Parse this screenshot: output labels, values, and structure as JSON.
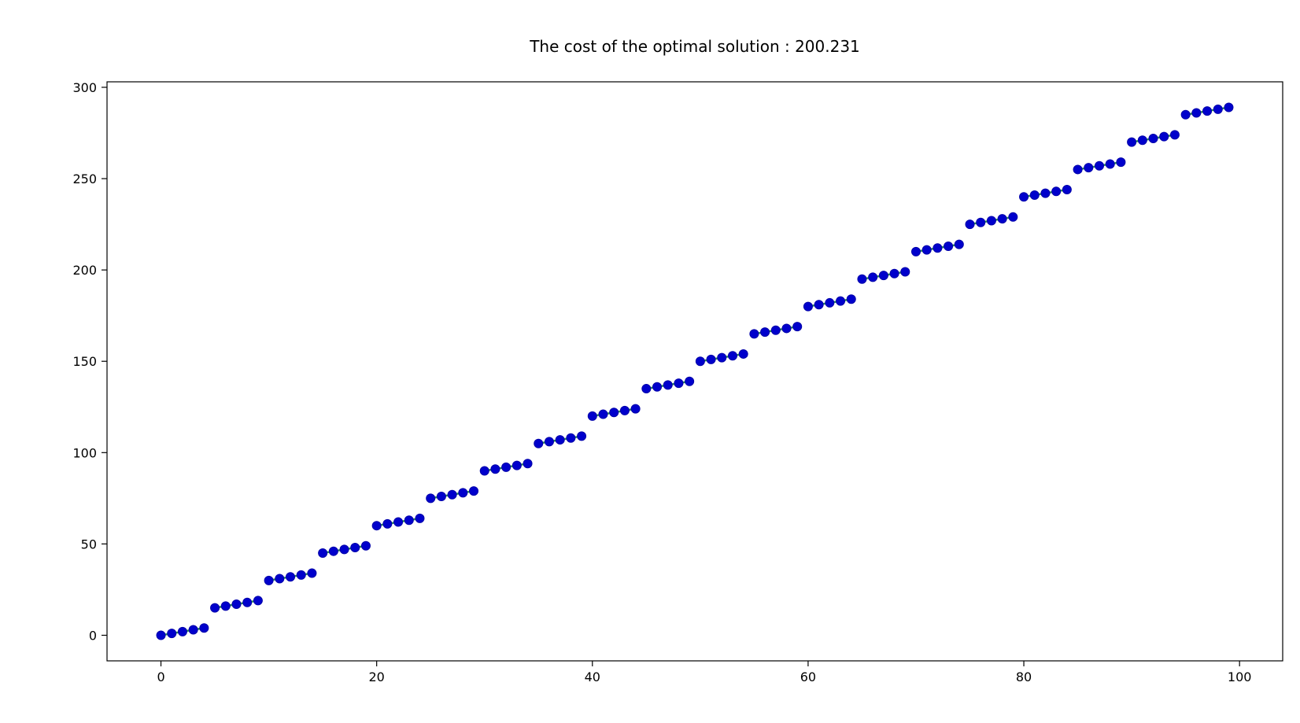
{
  "chart_data": {
    "type": "scatter",
    "title": "The cost of the optimal solution : 200.231",
    "xlabel": "",
    "ylabel": "",
    "xlim": [
      -5,
      104
    ],
    "ylim": [
      -14,
      303
    ],
    "x_ticks": [
      0,
      20,
      40,
      60,
      80,
      100
    ],
    "y_ticks": [
      0,
      50,
      100,
      150,
      200,
      250,
      300
    ],
    "grid": false,
    "legend": "none",
    "colors": {
      "marker": "#0000cc",
      "marker_edge": "#0000aa",
      "segment": "#2e8b57"
    },
    "segment_size": 5,
    "x": [
      0,
      1,
      2,
      3,
      4,
      5,
      6,
      7,
      8,
      9,
      10,
      11,
      12,
      13,
      14,
      15,
      16,
      17,
      18,
      19,
      20,
      21,
      22,
      23,
      24,
      25,
      26,
      27,
      28,
      29,
      30,
      31,
      32,
      33,
      34,
      35,
      36,
      37,
      38,
      39,
      40,
      41,
      42,
      43,
      44,
      45,
      46,
      47,
      48,
      49,
      50,
      51,
      52,
      53,
      54,
      55,
      56,
      57,
      58,
      59,
      60,
      61,
      62,
      63,
      64,
      65,
      66,
      67,
      68,
      69,
      70,
      71,
      72,
      73,
      74,
      75,
      76,
      77,
      78,
      79,
      80,
      81,
      82,
      83,
      84,
      85,
      86,
      87,
      88,
      89,
      90,
      91,
      92,
      93,
      94,
      95,
      96,
      97,
      98,
      99
    ],
    "y": [
      0,
      1,
      2,
      3,
      4,
      15,
      16,
      17,
      18,
      19,
      30,
      31,
      32,
      33,
      34,
      45,
      46,
      47,
      48,
      49,
      60,
      61,
      62,
      63,
      64,
      75,
      76,
      77,
      78,
      79,
      90,
      91,
      92,
      93,
      94,
      105,
      106,
      107,
      108,
      109,
      120,
      121,
      122,
      123,
      124,
      135,
      136,
      137,
      138,
      139,
      150,
      151,
      152,
      153,
      154,
      165,
      166,
      167,
      168,
      169,
      180,
      181,
      182,
      183,
      184,
      195,
      196,
      197,
      198,
      199,
      210,
      211,
      212,
      213,
      214,
      225,
      226,
      227,
      228,
      229,
      240,
      241,
      242,
      243,
      244,
      255,
      256,
      257,
      258,
      259,
      270,
      271,
      272,
      273,
      274,
      285,
      286,
      287,
      288,
      289
    ]
  }
}
